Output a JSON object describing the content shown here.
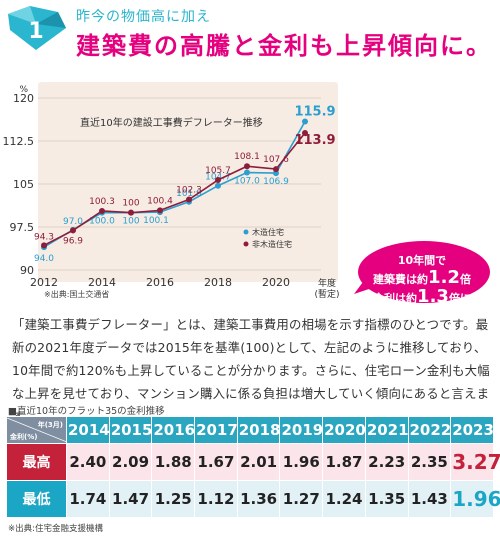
{
  "header": {
    "badge_number": "1",
    "subtitle": "昨今の物価高に加え",
    "title": "建築費の高騰と金利も上昇傾向に。"
  },
  "chart_data": {
    "type": "line",
    "title": "直近10年の建設工事費デフレーター推移",
    "ylabel": "%",
    "ylim": [
      90,
      120
    ],
    "yticks": [
      90,
      97.5,
      105,
      112.5,
      120
    ],
    "x": [
      2012,
      2013,
      2014,
      2015,
      2016,
      2017,
      2018,
      2019,
      2020,
      2021
    ],
    "xtick_labels": [
      "2012",
      "2014",
      "2016",
      "2018",
      "2020"
    ],
    "xtick_values": [
      2012,
      2014,
      2016,
      2018,
      2020
    ],
    "xlabel": "年度",
    "xlabel_sub": "(暫定)",
    "source": "※出典:国土交通省",
    "grid": true,
    "legend_position": "bottom-right",
    "series": [
      {
        "name": "木造住宅",
        "color": "#2a9fd0",
        "values": [
          94.0,
          97.0,
          100.0,
          100.0,
          100.1,
          101.9,
          104.7,
          107.0,
          106.9,
          115.9
        ],
        "labels": [
          "94.0",
          "97.0",
          "100.0",
          "100",
          "100.1",
          "101.9",
          "104.7",
          "107.0",
          "106.9",
          "115.9"
        ]
      },
      {
        "name": "非木造住宅",
        "color": "#8e1d3a",
        "values": [
          94.3,
          96.9,
          100.3,
          100.0,
          100.4,
          102.3,
          105.7,
          108.1,
          107.6,
          113.9
        ],
        "labels": [
          "94.3",
          "96.9",
          "100.3",
          "100",
          "100.4",
          "102.3",
          "105.7",
          "108.1",
          "107.6",
          "113.9"
        ]
      }
    ]
  },
  "bubble": {
    "line1": "10年間で",
    "line2_pre": "建築費は約",
    "line2_num": "1.2",
    "line2_post": "倍",
    "line3_pre": "金利は約",
    "line3_num": "1.3",
    "line3_post": "倍に"
  },
  "paragraph": "「建築工事費デフレーター」とは、建築工事費用の相場を示す指標のひとつです。最新の2021年度データでは2015年を基準(100)として、左記のように推移しており、10年間で約120%も上昇していることが分かります。さらに、住宅ローン金利も大幅な上昇を見せており、マンション購入に係る負担は増大していく傾向にあると言えます。",
  "table": {
    "title": "■直近10年のフラット35の金利推移",
    "corner_year": "年(3月)",
    "corner_rate": "金利(%)",
    "years": [
      "2014",
      "2015",
      "2016",
      "2017",
      "2018",
      "2019",
      "2020",
      "2021",
      "2022",
      "2023"
    ],
    "rows": [
      {
        "label": "最高",
        "values": [
          "2.40",
          "2.09",
          "1.88",
          "1.67",
          "2.01",
          "1.96",
          "1.87",
          "2.23",
          "2.35",
          "3.27"
        ]
      },
      {
        "label": "最低",
        "values": [
          "1.74",
          "1.47",
          "1.25",
          "1.12",
          "1.36",
          "1.27",
          "1.24",
          "1.35",
          "1.43",
          "1.96"
        ]
      }
    ],
    "source": "※出典:住宅金融支援機構"
  },
  "colors": {
    "accent_pink": "#e4007f",
    "accent_cyan": "#2bb6cf",
    "wood": "#2a9fd0",
    "nonwood": "#8e1d3a",
    "high_red": "#c4213b",
    "low_blue": "#1ca6c5"
  }
}
